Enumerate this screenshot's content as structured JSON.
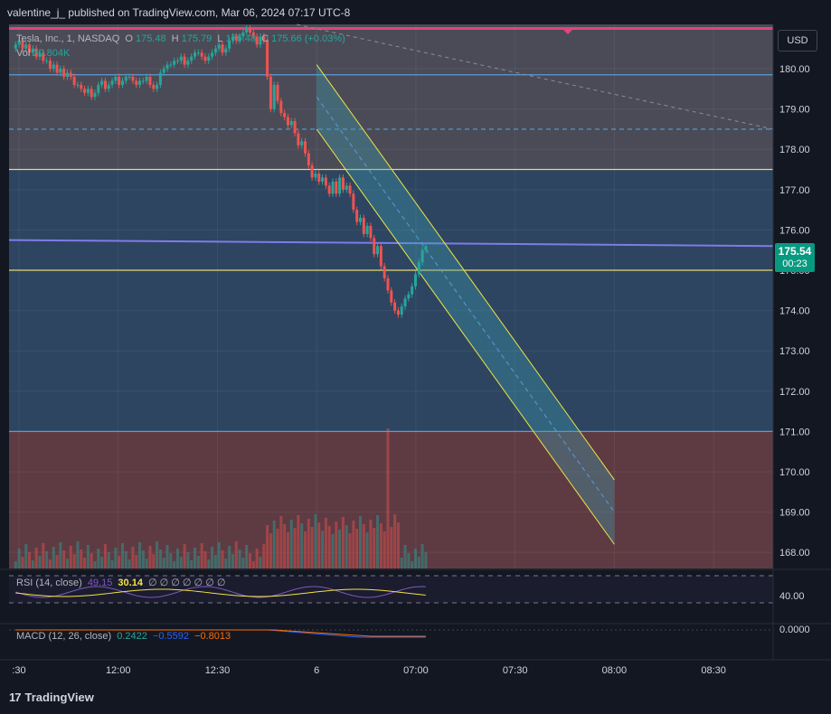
{
  "header": {
    "publish_text": "valentine_j_ published on TradingView.com, Mar 06, 2024 07:17 UTC-8"
  },
  "currency_label": "USD",
  "price_badge": {
    "price": "175.54",
    "countdown": "00:23"
  },
  "legend": {
    "symbol": "Tesla, Inc., 1, NASDAQ",
    "o_label": "O",
    "o_value": "175.48",
    "h_label": "H",
    "h_value": "175.79",
    "l_label": "L",
    "l_value": "175.48",
    "c_label": "C",
    "c_value": "175.66 (+0.03%)",
    "vol_label": "Vol",
    "vol_value": "20.804K"
  },
  "rsi": {
    "label": "RSI (14, close)",
    "value1": "49.15",
    "value2": "30.14",
    "extra": "∅ ∅ ∅ ∅ ∅ ∅ ∅",
    "axis_label": "40.00"
  },
  "macd": {
    "label": "MACD (12, 26, close)",
    "value1": "0.2422",
    "value2": "−0.5592",
    "value3": "−0.8013",
    "axis_label": "0.0000"
  },
  "footer": {
    "brand": "TradingView"
  },
  "colors": {
    "up": "#26a69a",
    "down": "#ef5350",
    "channel": "#f0e442",
    "hline": "#e8d86c",
    "blue_line": "#5b9bd5",
    "purple_line": "#7e7ce8",
    "top_line": "#e0457b"
  },
  "chart_data": {
    "type": "candlestick",
    "ylim": [
      167.6,
      181.1
    ],
    "y_ticks": [
      "180.00",
      "179.00",
      "178.00",
      "177.00",
      "176.00",
      "175.00",
      "174.00",
      "173.00",
      "172.00",
      "171.00",
      "170.00",
      "169.00",
      "168.00"
    ],
    "y_tick_values": [
      180,
      179,
      178,
      177,
      176,
      175,
      174,
      173,
      172,
      171,
      170,
      169,
      168
    ],
    "x_ticks": [
      ":30",
      "12:00",
      "12:30",
      "6",
      "07:00",
      "07:30",
      "08:00",
      "08:30"
    ],
    "x_tick_times": [
      0,
      30,
      60,
      90,
      120,
      150,
      180,
      210
    ],
    "series_close": [
      180.6,
      180.7,
      180.5,
      180.6,
      180.4,
      180.5,
      180.3,
      180.4,
      180.2,
      180.2,
      180.0,
      180.1,
      179.9,
      180.0,
      179.8,
      179.9,
      179.8,
      179.6,
      179.6,
      179.5,
      179.4,
      179.5,
      179.3,
      179.4,
      179.6,
      179.7,
      179.5,
      179.6,
      179.7,
      179.8,
      179.6,
      179.7,
      179.8,
      179.8,
      179.7,
      179.6,
      179.7,
      179.7,
      179.8,
      179.6,
      179.5,
      179.6,
      179.9,
      180.0,
      180.1,
      180.1,
      180.2,
      180.2,
      180.3,
      180.1,
      180.2,
      180.3,
      180.4,
      180.4,
      180.3,
      180.2,
      180.3,
      180.4,
      180.5,
      180.6,
      180.4,
      180.5,
      180.7,
      180.8,
      180.7,
      180.8,
      180.9,
      181.0,
      180.9,
      180.8,
      180.6,
      180.8,
      180.7,
      179.8,
      179.0,
      179.6,
      179.2,
      178.9,
      178.8,
      178.6,
      178.7,
      178.4,
      178.1,
      178.2,
      177.9,
      177.6,
      177.3,
      177.4,
      177.2,
      177.3,
      177.1,
      176.9,
      177.2,
      176.9,
      177.3,
      177.0,
      177.1,
      176.9,
      176.5,
      176.2,
      176.3,
      175.9,
      176.1,
      175.8,
      175.4,
      175.6,
      175.1,
      174.8,
      174.5,
      174.2,
      174.0,
      173.9,
      174.1,
      174.3,
      174.4,
      174.6,
      174.9,
      175.2,
      175.5,
      175.6
    ],
    "price_lines": [
      {
        "value": 181.0,
        "color": "#e0457b"
      },
      {
        "value": 179.85,
        "color": "#5b9bd5"
      },
      {
        "value": 178.5,
        "color": "#5b9bd5",
        "style": "dashed"
      },
      {
        "value": 177.5,
        "color": "#e8d86c"
      },
      {
        "value": 175.0,
        "color": "#e8d86c"
      },
      {
        "value": 171.0,
        "color": "#5b9bd5"
      }
    ],
    "channel": {
      "upper_start": [
        90,
        180.1
      ],
      "upper_end": [
        180,
        169.8
      ],
      "lower_start": [
        90,
        178.5
      ],
      "lower_end": [
        180,
        168.2
      ]
    },
    "rsi_last": 49.15,
    "macd": {
      "macd": 0.2422,
      "signal": -0.5592,
      "hist": -0.8013
    }
  }
}
